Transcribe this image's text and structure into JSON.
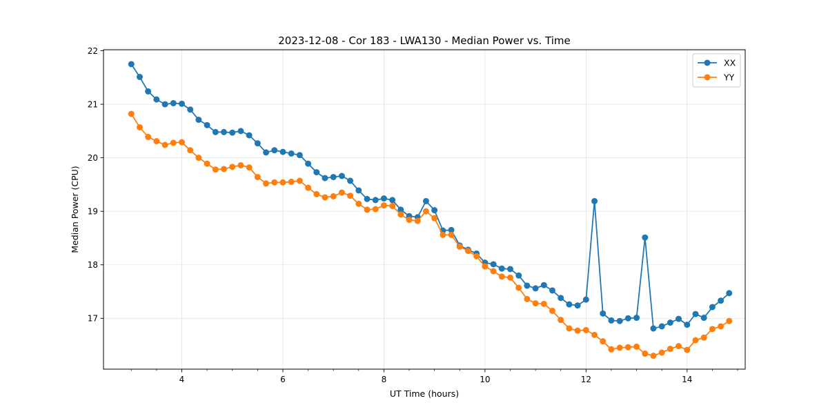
{
  "chart_data": {
    "type": "line",
    "title": "2023-12-08 - Cor 183 - LWA130 - Median Power vs. Time",
    "xlabel": "UT Time (hours)",
    "ylabel": "Median Power (CPU)",
    "xlim": [
      2.45,
      15.15
    ],
    "ylim": [
      16.05,
      22.02
    ],
    "xticks": [
      4,
      6,
      8,
      10,
      12,
      14
    ],
    "xtick_labels": [
      "4",
      "6",
      "8",
      "10",
      "12",
      "14"
    ],
    "yticks": [
      17,
      18,
      19,
      20,
      21,
      22
    ],
    "ytick_labels": [
      "17",
      "18",
      "19",
      "20",
      "21",
      "22"
    ],
    "grid": true,
    "legend_position": "top-right",
    "x": [
      3.0,
      3.167,
      3.333,
      3.5,
      3.667,
      3.833,
      4.0,
      4.167,
      4.333,
      4.5,
      4.667,
      4.833,
      5.0,
      5.167,
      5.333,
      5.5,
      5.667,
      5.833,
      6.0,
      6.167,
      6.333,
      6.5,
      6.667,
      6.833,
      7.0,
      7.167,
      7.333,
      7.5,
      7.667,
      7.833,
      8.0,
      8.167,
      8.333,
      8.5,
      8.667,
      8.833,
      9.0,
      9.167,
      9.333,
      9.5,
      9.667,
      9.833,
      10.0,
      10.167,
      10.333,
      10.5,
      10.667,
      10.833,
      11.0,
      11.167,
      11.333,
      11.5,
      11.667,
      11.833,
      12.0,
      12.167,
      12.333,
      12.5,
      12.667,
      12.833,
      13.0,
      13.167,
      13.333,
      13.5,
      13.667,
      13.833,
      14.0,
      14.167,
      14.333,
      14.5,
      14.667,
      14.833
    ],
    "series": [
      {
        "name": "XX",
        "color": "#1f77b4",
        "values": [
          21.75,
          21.51,
          21.24,
          21.09,
          21.0,
          21.02,
          21.01,
          20.9,
          20.71,
          20.61,
          20.48,
          20.48,
          20.47,
          20.5,
          20.42,
          20.27,
          20.1,
          20.14,
          20.11,
          20.08,
          20.05,
          19.89,
          19.73,
          19.62,
          19.64,
          19.66,
          19.57,
          19.39,
          19.23,
          19.21,
          19.24,
          19.21,
          19.03,
          18.91,
          18.89,
          19.19,
          19.02,
          18.64,
          18.65,
          18.36,
          18.28,
          18.21,
          18.04,
          18.01,
          17.93,
          17.92,
          17.8,
          17.61,
          17.56,
          17.62,
          17.52,
          17.38,
          17.26,
          17.24,
          17.35,
          19.19,
          17.09,
          16.96,
          16.95,
          17.0,
          17.01,
          18.51,
          16.81,
          16.85,
          16.92,
          16.99,
          16.88,
          17.08,
          17.01,
          17.21,
          17.33,
          17.47
        ]
      },
      {
        "name": "YY",
        "color": "#ff7f0e",
        "values": [
          20.82,
          20.57,
          20.39,
          20.31,
          20.24,
          20.28,
          20.29,
          20.14,
          20.0,
          19.89,
          19.78,
          19.79,
          19.83,
          19.86,
          19.82,
          19.64,
          19.52,
          19.54,
          19.54,
          19.55,
          19.57,
          19.44,
          19.32,
          19.26,
          19.28,
          19.35,
          19.29,
          19.14,
          19.03,
          19.04,
          19.11,
          19.1,
          18.94,
          18.84,
          18.82,
          19.0,
          18.87,
          18.56,
          18.56,
          18.34,
          18.26,
          18.16,
          17.97,
          17.88,
          17.78,
          17.76,
          17.57,
          17.36,
          17.28,
          17.27,
          17.14,
          16.97,
          16.81,
          16.77,
          16.78,
          16.69,
          16.57,
          16.42,
          16.45,
          16.46,
          16.47,
          16.34,
          16.3,
          16.36,
          16.43,
          16.48,
          16.41,
          16.59,
          16.64,
          16.8,
          16.85,
          16.95
        ]
      }
    ]
  }
}
